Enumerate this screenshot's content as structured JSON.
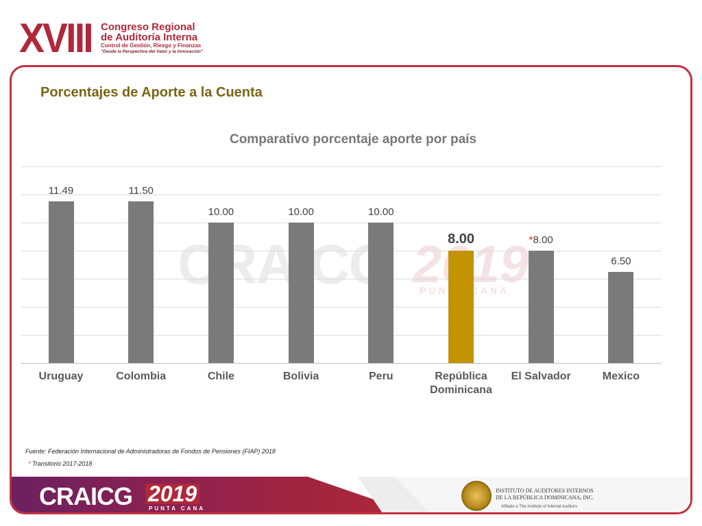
{
  "header": {
    "roman": "XVIII",
    "line1": "Congreso Regional",
    "line2": "de Auditoría Interna",
    "line3": "Control de Gestión, Riesgo y Finanzas",
    "line4": "\"Desde la Perspectiva del Valor y la Innovación\""
  },
  "slide": {
    "title": "Porcentajes de Aporte a la Cuenta"
  },
  "watermark": {
    "text": "CRAICG",
    "year": "2019",
    "sub": "PUNTA CANA"
  },
  "chart_data": {
    "type": "bar",
    "title": "Comparativo porcentaje aporte por país",
    "categories": [
      "Uruguay",
      "Colombia",
      "Chile",
      "Bolivia",
      "Peru",
      "República Dominicana",
      "El Salvador",
      "Mexico"
    ],
    "values": [
      11.49,
      11.5,
      10.0,
      10.0,
      10.0,
      8.0,
      8.0,
      6.5
    ],
    "labels": [
      "11.49",
      "11.50",
      "10.00",
      "10.00",
      "10.00",
      "8.00",
      "8.00",
      "6.50"
    ],
    "label_prefix": [
      "",
      "",
      "",
      "",
      "",
      "",
      "*",
      ""
    ],
    "highlight_index": 5,
    "colors": {
      "default": "#7a7a7a",
      "highlight": "#c39303"
    },
    "ylim": [
      0,
      14
    ],
    "grid": true,
    "xlabel": "",
    "ylabel": ""
  },
  "footnotes": {
    "source": "Fuente: Federación Internacional de Administradoras de Fondos de Pensiones (FIAP) 2018",
    "mark": "*",
    "transitorio": "Transitorio 2017-2018"
  },
  "footer": {
    "brand": "CRAICG",
    "year": "2019",
    "sub": "PUNTA CANA",
    "iaidr_line1": "INSTITUTO DE AUDITORES INTERNOS",
    "iaidr_line2": "DE LA REPÚBLICA DOMINICANA, INC.",
    "iaidr_line3": "Afiliado a The Institute of Internal Auditors"
  }
}
